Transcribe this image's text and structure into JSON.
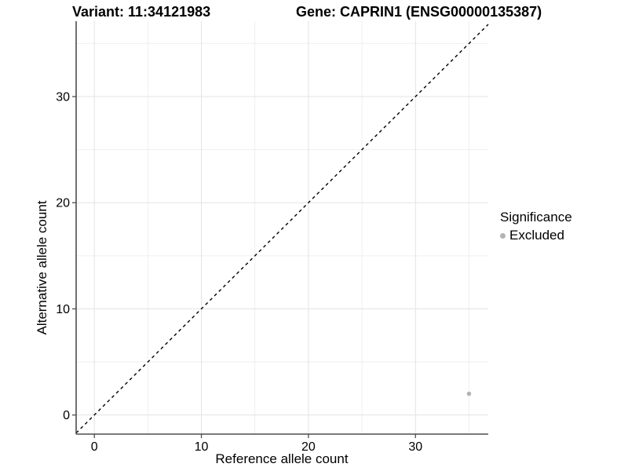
{
  "chart_data": {
    "type": "scatter",
    "title_variant": "Variant: 11:34121983",
    "title_gene": "Gene: CAPRIN1 (ENSG00000135387)",
    "xlabel": "Reference allele count",
    "ylabel": "Alternative allele count",
    "xlim": [
      -1.7,
      36.8
    ],
    "ylim": [
      -1.8,
      37.1
    ],
    "xticks": [
      0,
      10,
      20,
      30
    ],
    "yticks": [
      0,
      10,
      20,
      30
    ],
    "minor_tick_step": 5,
    "grid": true,
    "identity_line": {
      "style": "dashed",
      "equation": "y = x",
      "color": "#000000"
    },
    "points": [
      {
        "x": 35,
        "y": 2,
        "significance": "Excluded"
      }
    ],
    "legend": {
      "title": "Significance",
      "position": "right",
      "items": [
        {
          "label": "Excluded",
          "color": "#b3b3b3"
        }
      ]
    },
    "colors": {
      "point": "#b3b3b3",
      "axis_line": "#4d4d4d",
      "grid_major": "#e3e3e3",
      "grid_minor": "#efefef",
      "background": "#ffffff",
      "text": "#000000"
    }
  }
}
